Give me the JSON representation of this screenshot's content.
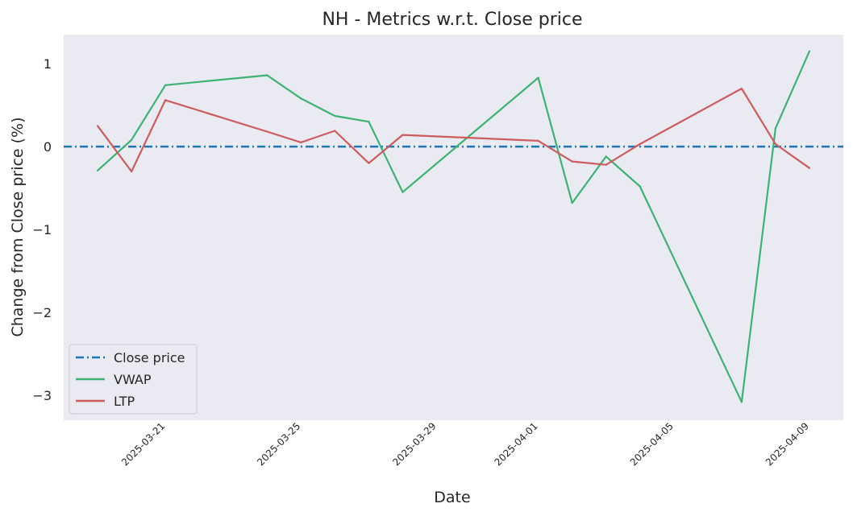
{
  "chart_data": {
    "type": "line",
    "title": "NH - Metrics w.r.t. Close price",
    "xlabel": "Date",
    "ylabel": "Change from Close price (%)",
    "x": [
      "2025-03-19",
      "2025-03-20",
      "2025-03-21",
      "2025-03-24",
      "2025-03-25",
      "2025-03-26",
      "2025-03-27",
      "2025-03-28",
      "2025-04-01",
      "2025-04-02",
      "2025-04-03",
      "2025-04-04",
      "2025-04-07",
      "2025-04-08",
      "2025-04-09"
    ],
    "x_ticks": [
      "2025-03-21",
      "2025-03-25",
      "2025-03-29",
      "2025-04-01",
      "2025-04-05",
      "2025-04-09"
    ],
    "y_ticks": [
      -3,
      -2,
      -1,
      0,
      1
    ],
    "y_tick_labels": [
      "−3",
      "−2",
      "−1",
      "0",
      "1"
    ],
    "xlim": [
      "2025-03-18",
      "2025-04-10"
    ],
    "ylim": [
      -3.3,
      1.35
    ],
    "grid": false,
    "legend_position": "lower-left",
    "reference_line": {
      "name": "Close price",
      "value": 0,
      "color": "#1f77b4",
      "style": "dash-dot"
    },
    "series": [
      {
        "name": "VWAP",
        "color": "#3cb371",
        "values": [
          -0.29,
          0.08,
          0.74,
          0.86,
          0.58,
          0.37,
          0.3,
          -0.55,
          0.83,
          -0.68,
          -0.12,
          -0.48,
          -3.08,
          0.22,
          1.15
        ]
      },
      {
        "name": "LTP",
        "color": "#cd5c5c",
        "values": [
          0.25,
          -0.3,
          0.56,
          0.18,
          0.05,
          0.19,
          -0.2,
          0.14,
          0.07,
          -0.18,
          -0.22,
          0.03,
          0.7,
          0.03,
          -0.26
        ]
      }
    ],
    "legend": [
      "Close price",
      "VWAP",
      "LTP"
    ],
    "plot_background": "#eaeaf2"
  }
}
